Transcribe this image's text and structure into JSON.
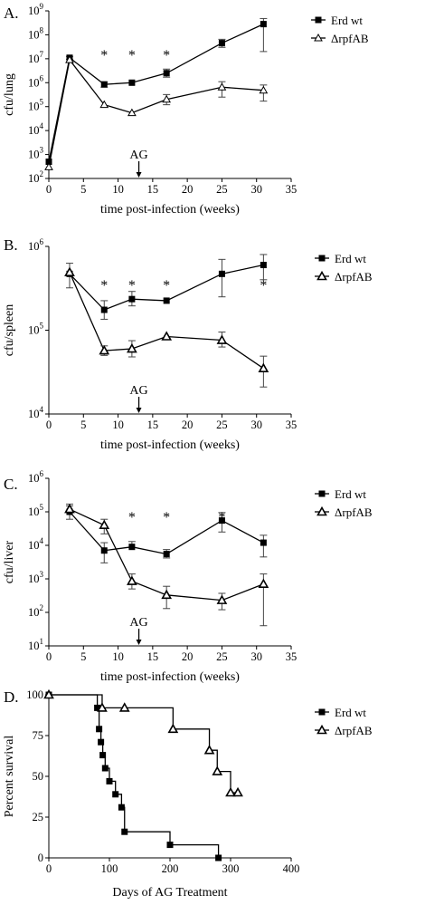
{
  "chart_data": [
    {
      "type": "line",
      "panel_label": "A.",
      "ylabel": "cfu/lung",
      "xlabel": "time post-infection (weeks)",
      "xlim": [
        0,
        35
      ],
      "xticks": [
        "0",
        "5",
        "10",
        "15",
        "20",
        "25",
        "30",
        "35"
      ],
      "yscale": "log",
      "ylim_exp": [
        2,
        9
      ],
      "ytick_mantissa": "10",
      "ytick_exponents": [
        "2",
        "3",
        "4",
        "5",
        "6",
        "7",
        "8",
        "9"
      ],
      "annotation": {
        "text": "AG",
        "x": 13
      },
      "significance_marker": "*",
      "significance_x": [
        8,
        12,
        17
      ],
      "marker_filled": true,
      "legend": [
        "Erd wt",
        "ΔrpfAB"
      ],
      "series": [
        {
          "name": "Erd wt",
          "marker": "square",
          "x": [
            0,
            3,
            8,
            12,
            17,
            25,
            31
          ],
          "y": [
            500,
            11000000,
            850000,
            1000000,
            2500000,
            45000000,
            280000000
          ],
          "err_up": [
            null,
            12500000,
            1050000,
            null,
            3700000,
            65000000,
            480000000
          ],
          "err_down": [
            null,
            9500000,
            650000,
            null,
            1700000,
            30000000,
            20000000
          ]
        },
        {
          "name": "ΔrpfAB",
          "marker": "triangle-open",
          "x": [
            0,
            3,
            8,
            12,
            17,
            25,
            31
          ],
          "y": [
            300,
            9000000,
            120000,
            55000,
            200000,
            650000,
            480000
          ],
          "err_up": [
            null,
            null,
            null,
            null,
            320000,
            1100000,
            800000
          ],
          "err_down": [
            null,
            null,
            null,
            null,
            120000,
            250000,
            170000
          ]
        }
      ]
    },
    {
      "type": "line",
      "panel_label": "B.",
      "ylabel": "cfu/spleen",
      "xlabel": "time post-infection (weeks)",
      "xlim": [
        0,
        35
      ],
      "xticks": [
        "0",
        "5",
        "10",
        "15",
        "20",
        "25",
        "30",
        "35"
      ],
      "yscale": "log",
      "ylim_exp": [
        4,
        6
      ],
      "ytick_mantissa": "10",
      "ytick_exponents": [
        "4",
        "5",
        "6"
      ],
      "annotation": {
        "text": "AG",
        "x": 13
      },
      "significance_marker": "*",
      "significance_x": [
        8,
        12,
        17,
        31
      ],
      "marker_filled": false,
      "legend": [
        "Erd wt",
        "ΔrpfAB"
      ],
      "series": [
        {
          "name": "Erd wt",
          "marker": "square",
          "x": [
            3,
            8,
            12,
            17,
            25,
            31
          ],
          "y": [
            470000,
            175000,
            235000,
            225000,
            470000,
            600000
          ],
          "err_up": [
            630000,
            225000,
            290000,
            null,
            700000,
            800000
          ],
          "err_down": [
            320000,
            135000,
            195000,
            null,
            250000,
            400000
          ]
        },
        {
          "name": "ΔrpfAB",
          "marker": "triangle",
          "x": [
            3,
            8,
            12,
            17,
            25,
            31
          ],
          "y": [
            490000,
            57000,
            60000,
            84000,
            76000,
            35000
          ],
          "err_up": [
            null,
            65000,
            75000,
            null,
            95000,
            49000
          ],
          "err_down": [
            null,
            50000,
            48000,
            null,
            63000,
            21000
          ]
        }
      ]
    },
    {
      "type": "line",
      "panel_label": "C.",
      "ylabel": "cfu/liver",
      "xlabel": "time post-infection (weeks)",
      "xlim": [
        0,
        35
      ],
      "xticks": [
        "0",
        "5",
        "10",
        "15",
        "20",
        "25",
        "30",
        "35"
      ],
      "yscale": "log",
      "ylim_exp": [
        1,
        6
      ],
      "ytick_mantissa": "10",
      "ytick_exponents": [
        "1",
        "2",
        "3",
        "4",
        "5",
        "6"
      ],
      "annotation": {
        "text": "AG",
        "x": 13
      },
      "significance_marker": "*",
      "significance_x": [
        12,
        17,
        25
      ],
      "marker_filled": false,
      "legend": [
        "Erd wt",
        "ΔrpfAB"
      ],
      "series": [
        {
          "name": "Erd wt",
          "marker": "square",
          "x": [
            3,
            8,
            12,
            17,
            25,
            31
          ],
          "y": [
            100000,
            7000,
            9000,
            5500,
            55000,
            12000
          ],
          "err_up": [
            150000,
            12000,
            13000,
            7500,
            95000,
            20000
          ],
          "err_down": [
            60000,
            3000,
            null,
            4200,
            25000,
            4500
          ]
        },
        {
          "name": "ΔrpfAB",
          "marker": "triangle",
          "x": [
            3,
            8,
            12,
            17,
            25,
            31
          ],
          "y": [
            120000,
            40000,
            850,
            330,
            230,
            700
          ],
          "err_up": [
            170000,
            60000,
            1400,
            600,
            370,
            1400
          ],
          "err_down": [
            null,
            22000,
            500,
            130,
            120,
            40
          ]
        }
      ]
    },
    {
      "type": "step",
      "panel_label": "D.",
      "ylabel": "Percent survival",
      "xlabel": "Days of AG Treatment",
      "xlim": [
        0,
        400
      ],
      "xticks": [
        "0",
        "100",
        "200",
        "300",
        "400"
      ],
      "ylim": [
        0,
        100
      ],
      "yticks": [
        "0",
        "25",
        "50",
        "75",
        "100"
      ],
      "marker_filled": false,
      "legend": [
        "Erd wt",
        "ΔrpfAB"
      ],
      "series": [
        {
          "name": "Erd wt",
          "marker": "square",
          "x": [
            0,
            80,
            83,
            86,
            89,
            93,
            100,
            110,
            120,
            125,
            200,
            280
          ],
          "y": [
            100,
            92,
            79,
            71,
            63,
            55,
            47,
            39,
            31,
            16,
            8,
            0
          ]
        },
        {
          "name": "ΔrpfAB",
          "marker": "triangle",
          "x": [
            0,
            88,
            125,
            205,
            265,
            278,
            300,
            312
          ],
          "y": [
            100,
            92,
            92,
            79,
            66,
            53,
            40,
            40
          ]
        }
      ]
    }
  ]
}
